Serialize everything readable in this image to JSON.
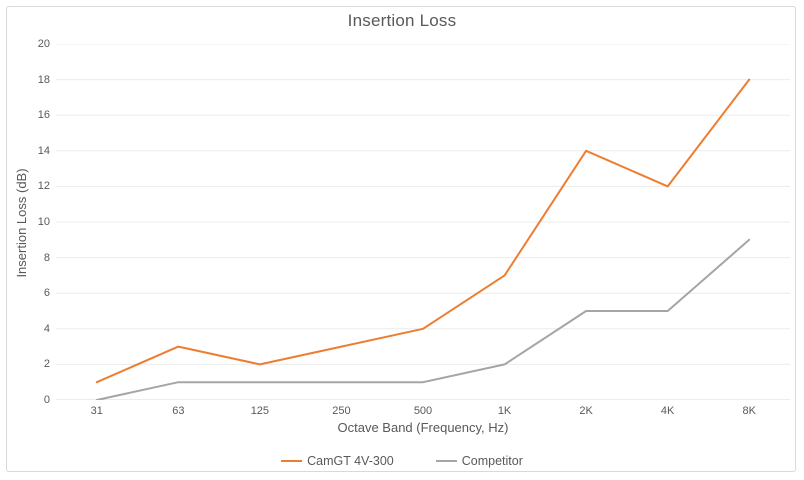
{
  "chart_data": {
    "type": "line",
    "title": "Insertion Loss",
    "xlabel": "Octave Band (Frequency, Hz)",
    "ylabel": "Insertion Loss (dB)",
    "categories": [
      "31",
      "63",
      "125",
      "250",
      "500",
      "1K",
      "2K",
      "4K",
      "8K"
    ],
    "series": [
      {
        "name": "CamGT 4V-300",
        "color": "#ED7D31",
        "values": [
          1,
          3,
          2,
          3,
          4,
          7,
          14,
          12,
          18
        ]
      },
      {
        "name": "Competitor",
        "color": "#A5A5A5",
        "values": [
          0,
          1,
          1,
          1,
          1,
          2,
          5,
          5,
          9
        ]
      }
    ],
    "ylim": [
      0,
      20
    ],
    "ytick_step": 2,
    "grid": true,
    "legend_position": "bottom",
    "colors": {
      "gridline": "#EBEBEB",
      "axis_line": "#D9D9D9",
      "text": "#595959",
      "frame_border": "#D9D9D9",
      "background": "#FFFFFF"
    }
  }
}
